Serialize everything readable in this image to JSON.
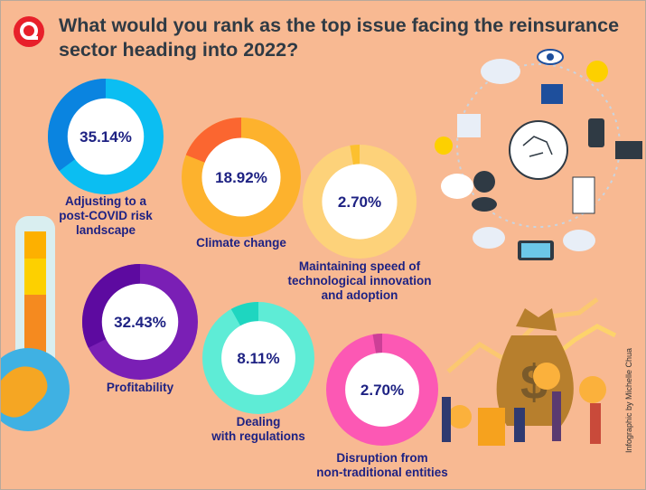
{
  "title": "What would you rank as the top issue facing the reinsurance sector heading into 2022?",
  "credit": "Infographic by Michelle Chua",
  "logo_letter": "Q",
  "colors": {
    "background": "#f8b992",
    "label": "#1e2283",
    "logo": "#e8202a"
  },
  "chart_data": {
    "type": "pie",
    "title": "What would you rank as the top issue facing the reinsurance sector heading into 2022?",
    "unit": "%",
    "categories": [
      "Adjusting to a post-COVID risk landscape",
      "Climate change",
      "Maintaining speed of technological innovation and adoption",
      "Profitability",
      "Dealing with regulations",
      "Disruption from non-traditional entities"
    ],
    "values": [
      35.14,
      18.92,
      2.7,
      32.43,
      8.11,
      2.7
    ],
    "data_labels": [
      "35.14%",
      "18.92%",
      "2.70%",
      "32.43%",
      "8.11%",
      "2.70%"
    ],
    "label_lines": [
      [
        "Adjusting to a",
        "post-COVID risk",
        "landscape"
      ],
      [
        "Climate change"
      ],
      [
        "Maintaining speed of",
        "technological innovation",
        "and adoption"
      ],
      [
        "Profitability"
      ],
      [
        "Dealing",
        "with regulations"
      ],
      [
        "Disruption from",
        "non-traditional entities"
      ]
    ],
    "series_colors": [
      {
        "value": "#0a84e0",
        "rest": "#0bbef2"
      },
      {
        "value": "#fb6630",
        "rest": "#fdb22d"
      },
      {
        "value": "#fcc02f",
        "rest": "#fdd27a"
      },
      {
        "value": "#5d0aa0",
        "rest": "#7a1fb5"
      },
      {
        "value": "#1ed6c0",
        "rest": "#5eecd6"
      },
      {
        "value": "#cc3f97",
        "rest": "#fc58b4"
      }
    ]
  }
}
